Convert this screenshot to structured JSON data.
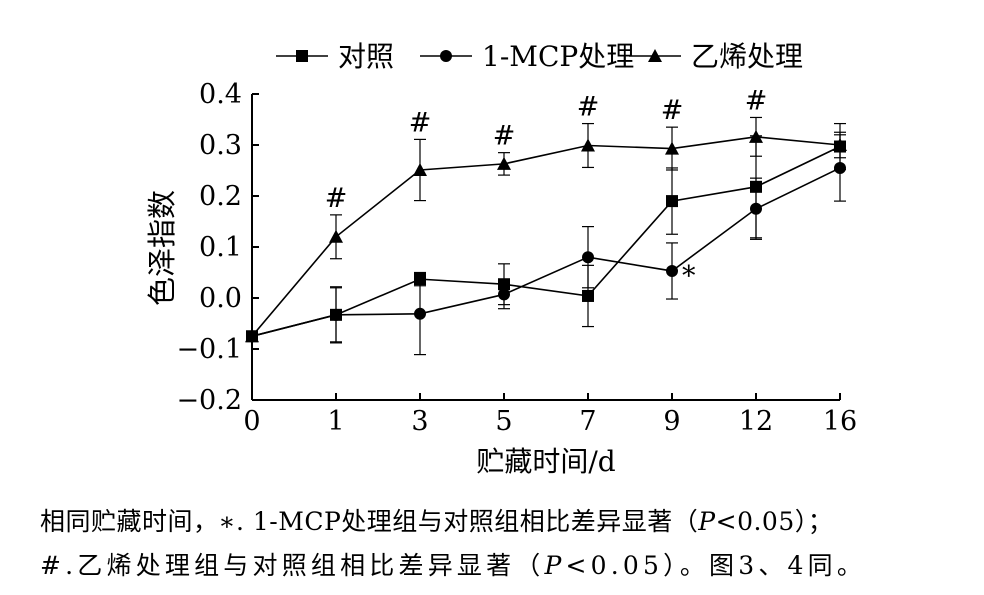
{
  "chart_data": {
    "type": "line",
    "xlabel": "贮藏时间/d",
    "ylabel": "色泽指数",
    "ylim": [
      -0.2,
      0.4
    ],
    "yticks": [
      "0.4",
      "0.3",
      "0.2",
      "0.1",
      "0.0",
      "−0.1",
      "−0.2"
    ],
    "ytick_values": [
      0.4,
      0.3,
      0.2,
      0.1,
      0.0,
      -0.1,
      -0.2
    ],
    "categories": [
      "0",
      "1",
      "3",
      "5",
      "7",
      "9",
      "12",
      "16"
    ],
    "legend_position": "top",
    "grid": false,
    "series": [
      {
        "name": "对照",
        "marker": "square",
        "values": [
          -0.075,
          -0.033,
          0.037,
          0.027,
          0.004,
          0.19,
          0.218,
          0.297
        ],
        "errors": [
          0.005,
          0.053,
          0.013,
          0.04,
          0.06,
          0.065,
          0.1,
          0.045
        ]
      },
      {
        "name": "1-MCP处理",
        "marker": "circle",
        "values": [
          -0.075,
          -0.033,
          -0.031,
          0.007,
          0.08,
          0.053,
          0.175,
          0.255
        ],
        "errors": [
          0.005,
          0.055,
          0.08,
          0.028,
          0.06,
          0.055,
          0.06,
          0.065
        ]
      },
      {
        "name": "乙烯处理",
        "marker": "triangle",
        "values": [
          -0.075,
          0.12,
          0.251,
          0.263,
          0.299,
          0.293,
          0.316,
          0.3
        ],
        "errors": [
          0.005,
          0.043,
          0.06,
          0.022,
          0.043,
          0.042,
          0.038,
          0.025
        ]
      }
    ],
    "annotations": [
      {
        "category": "1",
        "text": "#"
      },
      {
        "category": "3",
        "text": "#"
      },
      {
        "category": "5",
        "text": "#"
      },
      {
        "category": "7",
        "text": "#"
      },
      {
        "category": "9",
        "text": "#"
      },
      {
        "category": "12",
        "text": "#"
      },
      {
        "category": "9",
        "text": "*"
      }
    ]
  },
  "caption": {
    "line1": {
      "a": "相同贮藏时间，∗. 1-MCP处理组与对照组相比差异显著（",
      "p": "P",
      "b": "<0.05）；"
    },
    "line2": {
      "a": "#.乙烯处理组与对照组相比差异显著（",
      "p": "P",
      "b": "<0.05）。图3、4同。"
    }
  }
}
